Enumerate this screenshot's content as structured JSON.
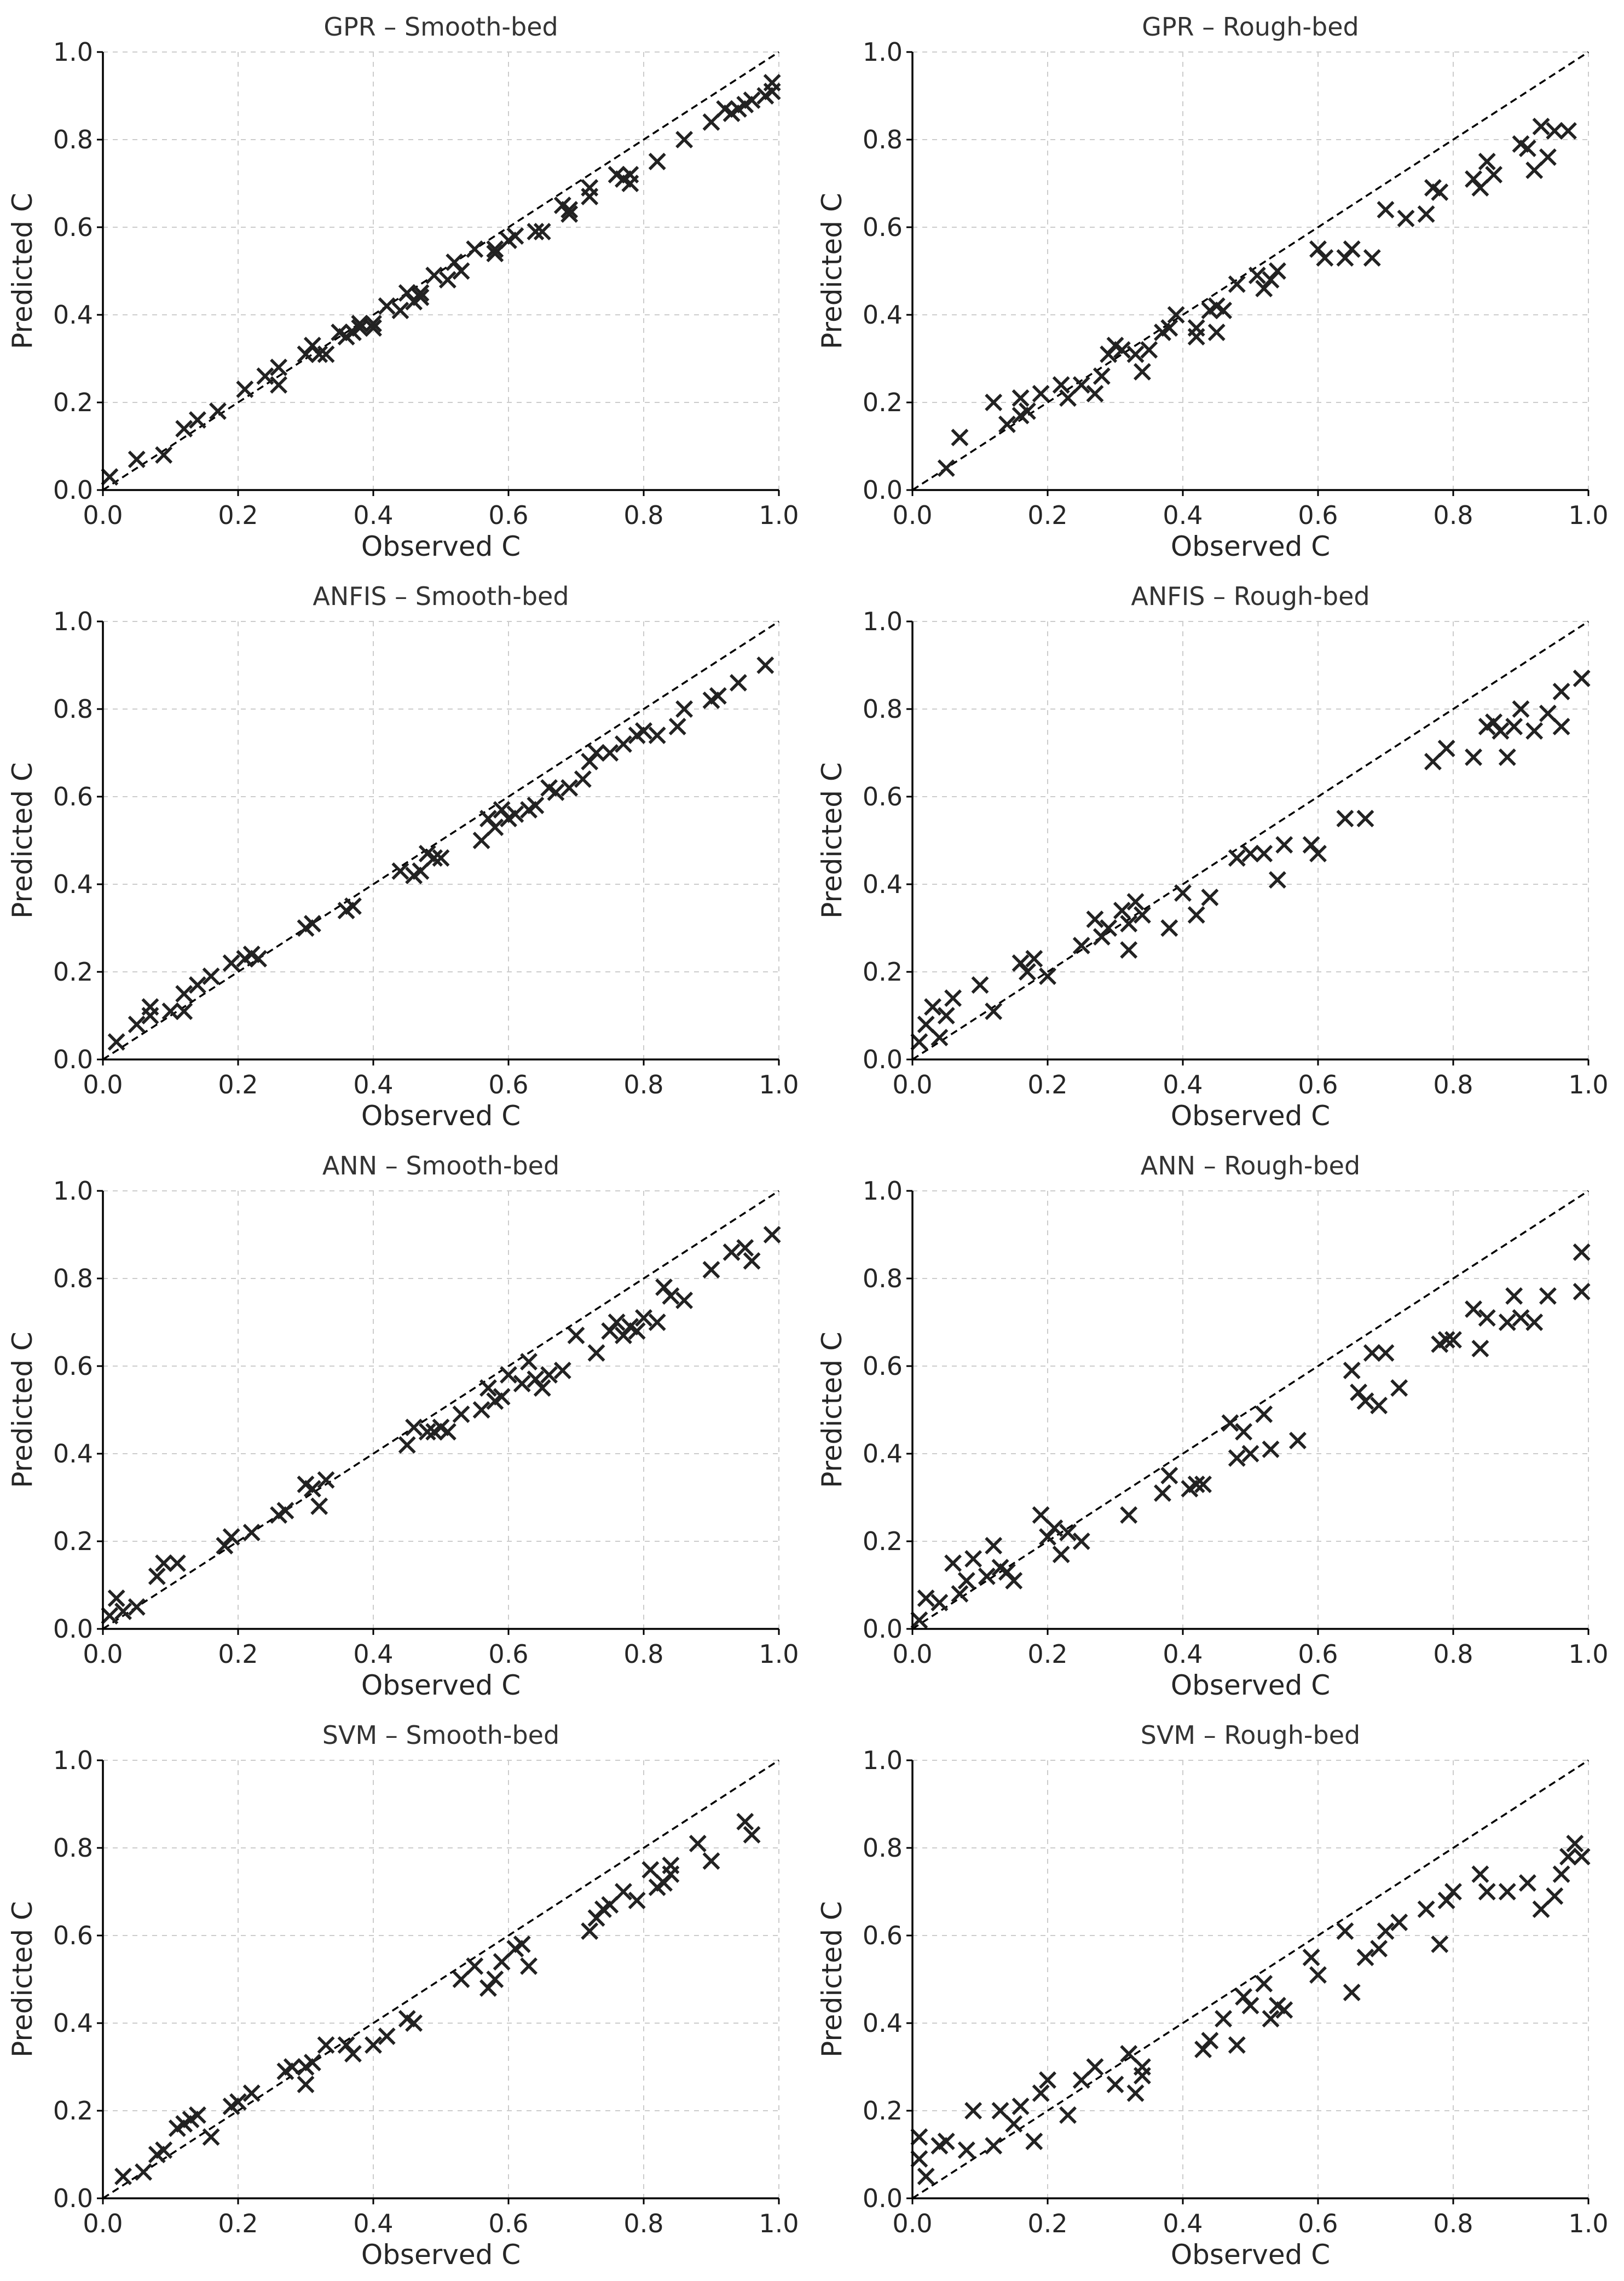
{
  "figure": {
    "layout": "4 rows x 2 columns",
    "marker": "x",
    "marker_color": "#222222",
    "reference_line": "dashed y = x"
  },
  "chart_data": [
    {
      "type": "scatter",
      "title": "GPR – Smooth-bed",
      "xlabel": "Observed C",
      "ylabel": "Predicted C",
      "xlim": [
        0,
        1
      ],
      "ylim": [
        0,
        1
      ],
      "xticks": [
        "0.0",
        "0.2",
        "0.4",
        "0.6",
        "0.8",
        "1.0"
      ],
      "yticks": [
        "0.0",
        "0.2",
        "0.4",
        "0.6",
        "0.8",
        "1.0"
      ],
      "grid": true,
      "x": [
        0.01,
        0.05,
        0.09,
        0.12,
        0.14,
        0.17,
        0.21,
        0.24,
        0.26,
        0.26,
        0.3,
        0.31,
        0.32,
        0.33,
        0.35,
        0.36,
        0.37,
        0.38,
        0.38,
        0.4,
        0.4,
        0.42,
        0.44,
        0.45,
        0.46,
        0.47,
        0.47,
        0.49,
        0.51,
        0.52,
        0.53,
        0.55,
        0.58,
        0.58,
        0.6,
        0.61,
        0.64,
        0.65,
        0.68,
        0.69,
        0.69,
        0.72,
        0.72,
        0.76,
        0.77,
        0.78,
        0.78,
        0.82,
        0.86,
        0.9,
        0.92,
        0.93,
        0.94,
        0.95,
        0.96,
        0.98,
        0.99,
        0.99
      ],
      "y": [
        0.03,
        0.07,
        0.08,
        0.14,
        0.16,
        0.18,
        0.23,
        0.26,
        0.24,
        0.28,
        0.31,
        0.33,
        0.31,
        0.31,
        0.36,
        0.35,
        0.36,
        0.38,
        0.37,
        0.37,
        0.38,
        0.42,
        0.41,
        0.45,
        0.43,
        0.45,
        0.44,
        0.49,
        0.48,
        0.52,
        0.5,
        0.55,
        0.54,
        0.55,
        0.57,
        0.58,
        0.59,
        0.59,
        0.65,
        0.64,
        0.63,
        0.67,
        0.69,
        0.72,
        0.71,
        0.72,
        0.7,
        0.75,
        0.8,
        0.84,
        0.87,
        0.86,
        0.87,
        0.88,
        0.89,
        0.9,
        0.91,
        0.93
      ]
    },
    {
      "type": "scatter",
      "title": "GPR – Rough-bed",
      "xlabel": "Observed C",
      "ylabel": "Predicted C",
      "xlim": [
        0,
        1
      ],
      "ylim": [
        0,
        1
      ],
      "xticks": [
        "0.0",
        "0.2",
        "0.4",
        "0.6",
        "0.8",
        "1.0"
      ],
      "yticks": [
        "0.0",
        "0.2",
        "0.4",
        "0.6",
        "0.8",
        "1.0"
      ],
      "grid": true,
      "x": [
        0.05,
        0.07,
        0.12,
        0.14,
        0.16,
        0.16,
        0.17,
        0.19,
        0.22,
        0.23,
        0.25,
        0.27,
        0.28,
        0.29,
        0.3,
        0.31,
        0.33,
        0.34,
        0.35,
        0.37,
        0.38,
        0.39,
        0.42,
        0.42,
        0.44,
        0.45,
        0.45,
        0.46,
        0.48,
        0.51,
        0.52,
        0.53,
        0.54,
        0.6,
        0.61,
        0.64,
        0.65,
        0.68,
        0.7,
        0.73,
        0.76,
        0.77,
        0.78,
        0.83,
        0.84,
        0.85,
        0.86,
        0.9,
        0.91,
        0.92,
        0.93,
        0.94,
        0.95,
        0.97
      ],
      "y": [
        0.05,
        0.12,
        0.2,
        0.15,
        0.21,
        0.17,
        0.18,
        0.22,
        0.24,
        0.21,
        0.24,
        0.22,
        0.26,
        0.31,
        0.33,
        0.32,
        0.31,
        0.27,
        0.32,
        0.36,
        0.37,
        0.4,
        0.35,
        0.37,
        0.41,
        0.36,
        0.42,
        0.41,
        0.47,
        0.49,
        0.46,
        0.48,
        0.5,
        0.55,
        0.53,
        0.53,
        0.55,
        0.53,
        0.64,
        0.62,
        0.63,
        0.69,
        0.68,
        0.71,
        0.69,
        0.75,
        0.72,
        0.79,
        0.78,
        0.73,
        0.83,
        0.76,
        0.82,
        0.82
      ]
    },
    {
      "type": "scatter",
      "title": "ANFIS – Smooth-bed",
      "xlabel": "Observed C",
      "ylabel": "Predicted C",
      "xlim": [
        0,
        1
      ],
      "ylim": [
        0,
        1
      ],
      "xticks": [
        "0.0",
        "0.2",
        "0.4",
        "0.6",
        "0.8",
        "1.0"
      ],
      "yticks": [
        "0.0",
        "0.2",
        "0.4",
        "0.6",
        "0.8",
        "1.0"
      ],
      "grid": true,
      "x": [
        0.02,
        0.05,
        0.07,
        0.07,
        0.1,
        0.12,
        0.12,
        0.14,
        0.16,
        0.19,
        0.21,
        0.22,
        0.23,
        0.3,
        0.31,
        0.36,
        0.37,
        0.44,
        0.46,
        0.47,
        0.48,
        0.49,
        0.5,
        0.56,
        0.57,
        0.58,
        0.59,
        0.6,
        0.61,
        0.63,
        0.64,
        0.66,
        0.67,
        0.69,
        0.71,
        0.72,
        0.73,
        0.75,
        0.77,
        0.79,
        0.8,
        0.82,
        0.85,
        0.86,
        0.9,
        0.91,
        0.94,
        0.98
      ],
      "y": [
        0.04,
        0.08,
        0.1,
        0.12,
        0.11,
        0.11,
        0.15,
        0.17,
        0.19,
        0.22,
        0.23,
        0.24,
        0.23,
        0.3,
        0.31,
        0.34,
        0.35,
        0.43,
        0.42,
        0.43,
        0.47,
        0.46,
        0.46,
        0.5,
        0.55,
        0.53,
        0.57,
        0.55,
        0.56,
        0.57,
        0.58,
        0.62,
        0.61,
        0.62,
        0.64,
        0.68,
        0.7,
        0.7,
        0.72,
        0.74,
        0.75,
        0.74,
        0.76,
        0.8,
        0.82,
        0.83,
        0.86,
        0.9
      ]
    },
    {
      "type": "scatter",
      "title": "ANFIS – Rough-bed",
      "xlabel": "Observed C",
      "ylabel": "Predicted C",
      "xlim": [
        0,
        1
      ],
      "ylim": [
        0,
        1
      ],
      "xticks": [
        "0.0",
        "0.2",
        "0.4",
        "0.6",
        "0.8",
        "1.0"
      ],
      "yticks": [
        "0.0",
        "0.2",
        "0.4",
        "0.6",
        "0.8",
        "1.0"
      ],
      "grid": true,
      "x": [
        0.01,
        0.02,
        0.03,
        0.04,
        0.05,
        0.06,
        0.1,
        0.12,
        0.16,
        0.17,
        0.18,
        0.2,
        0.25,
        0.27,
        0.28,
        0.29,
        0.31,
        0.32,
        0.32,
        0.33,
        0.34,
        0.38,
        0.4,
        0.42,
        0.44,
        0.48,
        0.5,
        0.52,
        0.54,
        0.55,
        0.59,
        0.6,
        0.64,
        0.67,
        0.77,
        0.79,
        0.83,
        0.85,
        0.86,
        0.87,
        0.88,
        0.89,
        0.9,
        0.92,
        0.94,
        0.96,
        0.96,
        0.99
      ],
      "y": [
        0.04,
        0.08,
        0.12,
        0.05,
        0.1,
        0.14,
        0.17,
        0.11,
        0.22,
        0.2,
        0.23,
        0.19,
        0.26,
        0.32,
        0.28,
        0.3,
        0.34,
        0.25,
        0.31,
        0.36,
        0.33,
        0.3,
        0.38,
        0.33,
        0.37,
        0.46,
        0.47,
        0.47,
        0.41,
        0.49,
        0.49,
        0.47,
        0.55,
        0.55,
        0.68,
        0.71,
        0.69,
        0.76,
        0.77,
        0.75,
        0.69,
        0.76,
        0.8,
        0.75,
        0.79,
        0.84,
        0.76,
        0.87
      ]
    },
    {
      "type": "scatter",
      "title": "ANN – Smooth-bed",
      "xlabel": "Observed C",
      "ylabel": "Predicted C",
      "xlim": [
        0,
        1
      ],
      "ylim": [
        0,
        1
      ],
      "xticks": [
        "0.0",
        "0.2",
        "0.4",
        "0.6",
        "0.8",
        "1.0"
      ],
      "yticks": [
        "0.0",
        "0.2",
        "0.4",
        "0.6",
        "0.8",
        "1.0"
      ],
      "grid": true,
      "x": [
        0.01,
        0.02,
        0.03,
        0.05,
        0.08,
        0.09,
        0.11,
        0.18,
        0.19,
        0.22,
        0.26,
        0.27,
        0.3,
        0.31,
        0.32,
        0.33,
        0.45,
        0.46,
        0.48,
        0.49,
        0.5,
        0.51,
        0.53,
        0.56,
        0.57,
        0.58,
        0.59,
        0.6,
        0.62,
        0.63,
        0.64,
        0.65,
        0.66,
        0.68,
        0.7,
        0.73,
        0.75,
        0.76,
        0.77,
        0.78,
        0.79,
        0.8,
        0.82,
        0.83,
        0.84,
        0.86,
        0.9,
        0.93,
        0.95,
        0.96,
        0.99
      ],
      "y": [
        0.03,
        0.07,
        0.04,
        0.05,
        0.12,
        0.15,
        0.15,
        0.19,
        0.21,
        0.22,
        0.26,
        0.27,
        0.33,
        0.32,
        0.28,
        0.34,
        0.42,
        0.46,
        0.45,
        0.45,
        0.46,
        0.45,
        0.49,
        0.5,
        0.55,
        0.52,
        0.53,
        0.58,
        0.56,
        0.61,
        0.57,
        0.55,
        0.58,
        0.59,
        0.67,
        0.63,
        0.68,
        0.7,
        0.67,
        0.69,
        0.68,
        0.71,
        0.7,
        0.78,
        0.76,
        0.75,
        0.82,
        0.86,
        0.87,
        0.84,
        0.9
      ]
    },
    {
      "type": "scatter",
      "title": "ANN – Rough-bed",
      "xlabel": "Observed C",
      "ylabel": "Predicted C",
      "xlim": [
        0,
        1
      ],
      "ylim": [
        0,
        1
      ],
      "xticks": [
        "0.0",
        "0.2",
        "0.4",
        "0.6",
        "0.8",
        "1.0"
      ],
      "yticks": [
        "0.0",
        "0.2",
        "0.4",
        "0.6",
        "0.8",
        "1.0"
      ],
      "grid": true,
      "x": [
        0.01,
        0.02,
        0.04,
        0.06,
        0.07,
        0.08,
        0.09,
        0.11,
        0.12,
        0.13,
        0.14,
        0.15,
        0.19,
        0.2,
        0.21,
        0.22,
        0.23,
        0.25,
        0.32,
        0.37,
        0.38,
        0.41,
        0.42,
        0.43,
        0.47,
        0.48,
        0.49,
        0.5,
        0.52,
        0.53,
        0.57,
        0.65,
        0.66,
        0.67,
        0.68,
        0.69,
        0.7,
        0.72,
        0.78,
        0.79,
        0.8,
        0.83,
        0.84,
        0.85,
        0.88,
        0.89,
        0.9,
        0.92,
        0.94,
        0.99,
        0.99
      ],
      "y": [
        0.02,
        0.07,
        0.06,
        0.15,
        0.08,
        0.11,
        0.16,
        0.12,
        0.19,
        0.14,
        0.13,
        0.11,
        0.26,
        0.21,
        0.23,
        0.17,
        0.22,
        0.2,
        0.26,
        0.31,
        0.35,
        0.32,
        0.33,
        0.33,
        0.47,
        0.39,
        0.45,
        0.4,
        0.49,
        0.41,
        0.43,
        0.59,
        0.54,
        0.52,
        0.63,
        0.51,
        0.63,
        0.55,
        0.65,
        0.66,
        0.66,
        0.73,
        0.64,
        0.71,
        0.7,
        0.76,
        0.71,
        0.7,
        0.76,
        0.77,
        0.86
      ]
    },
    {
      "type": "scatter",
      "title": "SVM – Smooth-bed",
      "xlabel": "Observed C",
      "ylabel": "Predicted C",
      "xlim": [
        0,
        1
      ],
      "ylim": [
        0,
        1
      ],
      "xticks": [
        "0.0",
        "0.2",
        "0.4",
        "0.6",
        "0.8",
        "1.0"
      ],
      "yticks": [
        "0.0",
        "0.2",
        "0.4",
        "0.6",
        "0.8",
        "1.0"
      ],
      "grid": true,
      "x": [
        0.03,
        0.06,
        0.08,
        0.09,
        0.11,
        0.12,
        0.13,
        0.14,
        0.16,
        0.19,
        0.2,
        0.22,
        0.27,
        0.28,
        0.3,
        0.3,
        0.31,
        0.33,
        0.36,
        0.37,
        0.4,
        0.42,
        0.45,
        0.46,
        0.53,
        0.55,
        0.57,
        0.58,
        0.59,
        0.61,
        0.62,
        0.63,
        0.72,
        0.73,
        0.74,
        0.75,
        0.77,
        0.79,
        0.81,
        0.82,
        0.83,
        0.84,
        0.84,
        0.88,
        0.9,
        0.95,
        0.96
      ],
      "y": [
        0.05,
        0.06,
        0.1,
        0.11,
        0.16,
        0.17,
        0.18,
        0.19,
        0.14,
        0.21,
        0.22,
        0.24,
        0.29,
        0.3,
        0.26,
        0.3,
        0.31,
        0.35,
        0.35,
        0.33,
        0.35,
        0.37,
        0.41,
        0.4,
        0.5,
        0.53,
        0.48,
        0.5,
        0.54,
        0.57,
        0.58,
        0.53,
        0.61,
        0.64,
        0.66,
        0.67,
        0.7,
        0.68,
        0.75,
        0.71,
        0.72,
        0.76,
        0.74,
        0.81,
        0.77,
        0.86,
        0.83
      ]
    },
    {
      "type": "scatter",
      "title": "SVM – Rough-bed",
      "xlabel": "Observed C",
      "ylabel": "Predicted C",
      "xlim": [
        0,
        1
      ],
      "ylim": [
        0,
        1
      ],
      "xticks": [
        "0.0",
        "0.2",
        "0.4",
        "0.6",
        "0.8",
        "1.0"
      ],
      "yticks": [
        "0.0",
        "0.2",
        "0.4",
        "0.6",
        "0.8",
        "1.0"
      ],
      "grid": true,
      "x": [
        0.01,
        0.01,
        0.02,
        0.04,
        0.05,
        0.08,
        0.09,
        0.12,
        0.13,
        0.15,
        0.16,
        0.18,
        0.19,
        0.2,
        0.23,
        0.25,
        0.27,
        0.3,
        0.32,
        0.33,
        0.34,
        0.34,
        0.43,
        0.44,
        0.46,
        0.48,
        0.49,
        0.5,
        0.52,
        0.53,
        0.54,
        0.55,
        0.59,
        0.6,
        0.64,
        0.65,
        0.67,
        0.69,
        0.7,
        0.72,
        0.76,
        0.78,
        0.79,
        0.8,
        0.84,
        0.85,
        0.88,
        0.91,
        0.93,
        0.95,
        0.96,
        0.97,
        0.98,
        0.99
      ],
      "y": [
        0.09,
        0.14,
        0.05,
        0.12,
        0.13,
        0.11,
        0.2,
        0.12,
        0.2,
        0.17,
        0.21,
        0.13,
        0.24,
        0.27,
        0.19,
        0.27,
        0.3,
        0.26,
        0.33,
        0.24,
        0.28,
        0.3,
        0.34,
        0.36,
        0.41,
        0.35,
        0.46,
        0.44,
        0.49,
        0.41,
        0.44,
        0.43,
        0.55,
        0.51,
        0.61,
        0.47,
        0.55,
        0.57,
        0.61,
        0.63,
        0.66,
        0.58,
        0.68,
        0.7,
        0.74,
        0.7,
        0.7,
        0.72,
        0.66,
        0.69,
        0.74,
        0.78,
        0.81,
        0.78
      ]
    }
  ]
}
